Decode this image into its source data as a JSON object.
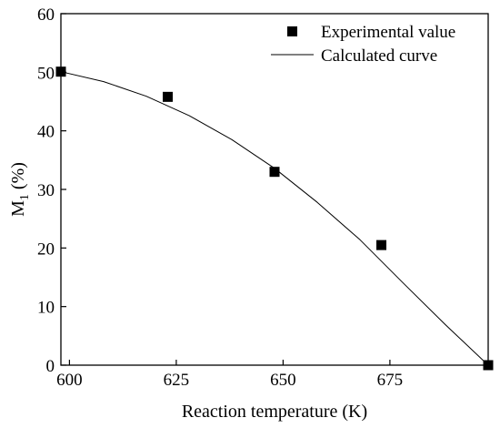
{
  "chart_data": {
    "type": "scatter",
    "title": "",
    "xlabel": "Reaction temperature (K)",
    "ylabel_main": "M",
    "ylabel_sub": "1",
    "ylabel_rest": " (%)",
    "xlim": [
      598,
      698
    ],
    "ylim": [
      0,
      60
    ],
    "xticks": [
      600,
      625,
      650,
      675
    ],
    "yticks": [
      0,
      10,
      20,
      30,
      40,
      50,
      60
    ],
    "grid": false,
    "legend_position": "top-right",
    "series": [
      {
        "name": "Experimental value",
        "kind": "scatter",
        "marker": "square",
        "color": "#000000",
        "x": [
          598,
          623,
          648,
          673,
          698
        ],
        "y": [
          50.1,
          45.8,
          33.0,
          20.5,
          0.0
        ]
      },
      {
        "name": "Calculated curve",
        "kind": "line",
        "color": "#000000",
        "x": [
          598,
          608,
          618,
          628,
          638,
          648,
          658,
          668,
          678,
          688,
          698
        ],
        "y": [
          50.1,
          48.4,
          45.9,
          42.6,
          38.5,
          33.6,
          27.8,
          21.4,
          14.1,
          6.9,
          0.0
        ]
      }
    ]
  }
}
